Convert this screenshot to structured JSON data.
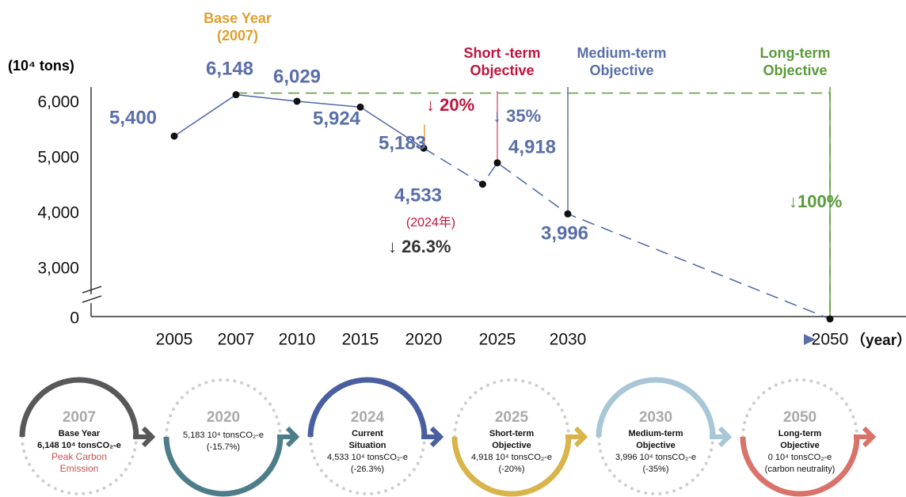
{
  "chart_data": {
    "type": "line",
    "ylabel": "(10⁴ tons)",
    "xlabel": "（year）",
    "x": [
      2005,
      2007,
      2010,
      2015,
      2020,
      2024,
      2025,
      2030,
      2050
    ],
    "values": [
      5400,
      6148,
      6029,
      5924,
      5183,
      4533,
      4918,
      3996,
      0
    ],
    "value_labels": [
      "5,400",
      "6,148",
      "6,029",
      "5,924",
      "5,183",
      "4,533",
      "4,918",
      "3,996",
      null
    ],
    "color": "#4a64a8",
    "xticks": [
      2005,
      2007,
      2010,
      2015,
      2020,
      2025,
      2030,
      2050
    ],
    "ylim": [
      0,
      6300
    ],
    "yticks": [
      0,
      {
        "value": 3000,
        "label": "3,000"
      },
      {
        "value": 4000,
        "label": "4,000"
      },
      {
        "value": 5000,
        "label": "5,000"
      },
      {
        "value": 6000,
        "label": "6,000"
      }
    ],
    "axis_break": true,
    "annotations": [
      {
        "lines": [
          "Base Year",
          "(2007)"
        ],
        "color": "#e0a030"
      },
      {
        "lines": [
          "Short -term",
          "Objective"
        ],
        "color": "#c0143c"
      },
      {
        "lines": [
          "Medium-term",
          "Objective"
        ],
        "color": "#5a6fa8"
      },
      {
        "lines": [
          "Long-term",
          "Objective"
        ],
        "color": "#5a9a3a"
      },
      {
        "lines": [
          "↓ 20%"
        ],
        "color": "#c0143c"
      },
      {
        "lines": [
          "↓ 35%"
        ],
        "color": "#5a6fa8"
      },
      {
        "lines": [
          "↓100%"
        ],
        "color": "#5a9a3a"
      },
      {
        "lines": [
          "(2024年)"
        ],
        "color": "#c0143c"
      },
      {
        "lines": [
          "↓ 26.3%"
        ],
        "color": "#333333"
      }
    ]
  },
  "timeline": [
    {
      "year": "2007",
      "color": "#58585a",
      "lines": [
        "Base Year",
        "6,148 10⁴ tonsCO₂-e",
        "Peak Carbon",
        "Emission"
      ]
    },
    {
      "year": "2020",
      "color": "#4e7d8a",
      "lines": [
        "5,183 10⁴ tonsCO₂-e",
        "(-15.7%)"
      ]
    },
    {
      "year": "2024",
      "color": "#4a5fa0",
      "lines": [
        "Current",
        "Situation",
        "4,533 10⁴ tonsCO₂-e",
        "(-26.3%)"
      ]
    },
    {
      "year": "2025",
      "color": "#d9b44a",
      "lines": [
        "Short-term",
        "Objective",
        "4,918 10⁴ tonsCO₂-e",
        "(-20%)"
      ]
    },
    {
      "year": "2030",
      "color": "#a9c6d6",
      "lines": [
        "Medium-term",
        "Objective",
        "3,996 10⁴ tonsCO₂-e",
        "(-35%)"
      ]
    },
    {
      "year": "2050",
      "color": "#d9736a",
      "lines": [
        "Long-term",
        "Objective",
        "0 10⁴ tonsCO₂-e",
        "(carbon neutrality)"
      ]
    }
  ]
}
